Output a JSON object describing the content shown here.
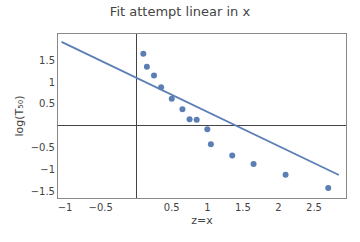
{
  "chart_data": {
    "type": "scatter",
    "title": "Fit attempt linear in x",
    "xlabel": "z=x",
    "ylabel": "log(T₅₀)",
    "series": [
      {
        "type": "scatter",
        "marker": "circle",
        "color": "#5b7fb5",
        "x": [
          0.1,
          0.15,
          0.25,
          0.35,
          0.5,
          0.65,
          0.75,
          0.85,
          1.0,
          1.05,
          1.35,
          1.65,
          2.1,
          2.7
        ],
        "values": [
          1.65,
          1.35,
          1.15,
          0.88,
          0.62,
          0.38,
          0.15,
          0.14,
          -0.08,
          -0.42,
          -0.68,
          -0.87,
          -1.12,
          -1.42
        ]
      },
      {
        "type": "line",
        "line_style": "solid",
        "color": "#5b7fb5",
        "x": [
          -1.05,
          2.85
        ],
        "values": [
          1.919,
          -1.123
        ]
      }
    ],
    "xlim": [
      -1.1,
      2.95
    ],
    "ylim": [
      -1.65,
      2.1
    ],
    "xticks": [
      {
        "value": -1.0,
        "label": "−1"
      },
      {
        "value": -0.5,
        "label": "−0.5"
      },
      0.5,
      1,
      1.5,
      2,
      2.5
    ],
    "yticks": [
      {
        "value": -1.5,
        "label": "−1.5"
      },
      {
        "value": -1.0,
        "label": "−1"
      },
      {
        "value": -0.5,
        "label": "−0.5"
      },
      0.5,
      1,
      1.5
    ],
    "grid": false
  }
}
